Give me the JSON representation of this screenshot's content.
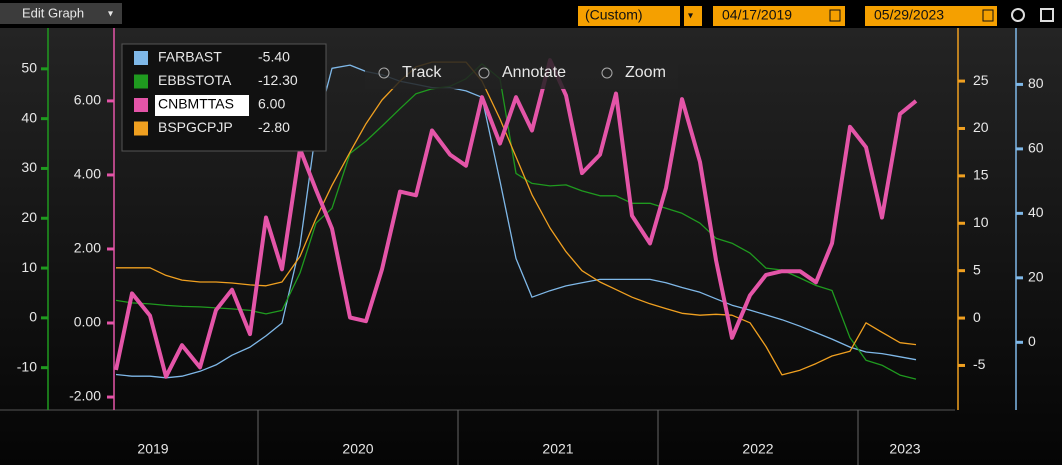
{
  "ui": {
    "edit_button": "Edit Graph",
    "period": "(Custom)",
    "start_date": "04/17/2019",
    "end_date": "05/29/2023",
    "tools": [
      "Track",
      "Annotate",
      "Zoom"
    ]
  },
  "chart_data": {
    "type": "line",
    "categories": [
      "2019",
      "2020",
      "2021",
      "2022",
      "2023"
    ],
    "xlim": [
      2018.95,
      2023.47
    ],
    "xticks": [
      2020,
      2021,
      2022,
      2023
    ],
    "x": [
      2019.29,
      2019.37,
      2019.46,
      2019.54,
      2019.62,
      2019.71,
      2019.79,
      2019.87,
      2019.96,
      2020.04,
      2020.12,
      2020.21,
      2020.29,
      2020.37,
      2020.46,
      2020.54,
      2020.62,
      2020.71,
      2020.79,
      2020.87,
      2020.96,
      2021.04,
      2021.12,
      2021.21,
      2021.29,
      2021.37,
      2021.46,
      2021.54,
      2021.62,
      2021.71,
      2021.79,
      2021.87,
      2021.96,
      2022.04,
      2022.12,
      2022.21,
      2022.29,
      2022.37,
      2022.46,
      2022.54,
      2022.62,
      2022.71,
      2022.79,
      2022.87,
      2022.96,
      2023.04,
      2023.12,
      2023.21,
      2023.29
    ],
    "ylim": [
      -18.5,
      58.2
    ],
    "yticks": [
      -10,
      0,
      10,
      20,
      30,
      40,
      50
    ],
    "y2lim": [
      -2.35,
      7.97
    ],
    "y2ticks": [
      {
        "value": -2,
        "label": "-2.00"
      },
      {
        "value": 0,
        "label": "0.00"
      },
      {
        "value": 2,
        "label": "2.00"
      },
      {
        "value": 4,
        "label": "4.00"
      },
      {
        "value": 6,
        "label": "6.00"
      }
    ],
    "y3lim": [
      -9.7,
      30.6
    ],
    "y3ticks": [
      -5,
      0,
      5,
      10,
      15,
      20,
      25
    ],
    "y4lim": [
      -21,
      97.5
    ],
    "y4ticks": [
      0,
      20,
      40,
      60,
      80
    ],
    "series": [
      {
        "name": "FARBAST",
        "legend_label": "-5.40",
        "color": "#7fb8e8",
        "axis": "y4",
        "values": [
          -10,
          -10.5,
          -10.5,
          -11,
          -10.5,
          -9,
          -7,
          -4,
          -1.5,
          2,
          6,
          30,
          66,
          85,
          86,
          84,
          83,
          81,
          80,
          79,
          79,
          78,
          76,
          50,
          26,
          14,
          16,
          17.5,
          18.5,
          19.5,
          19.5,
          19.5,
          19.5,
          18.5,
          17,
          15.5,
          13.5,
          11.5,
          10,
          8.5,
          7,
          5,
          3,
          1,
          -1.5,
          -3,
          -3.5,
          -4.5,
          -5.4
        ]
      },
      {
        "name": "EBBSTOTA",
        "legend_label": "-12.30",
        "color": "#1f9a1f",
        "axis": "y",
        "values": [
          3.5,
          3,
          2.8,
          2.5,
          2.3,
          2.2,
          2,
          1.8,
          1.5,
          0.8,
          1.5,
          9,
          19,
          22,
          33,
          35.5,
          38.5,
          42,
          45,
          46,
          46.5,
          48,
          51,
          48,
          29,
          27,
          26.5,
          26.7,
          25.5,
          24.5,
          24.5,
          23,
          23,
          22,
          21,
          19,
          16,
          15,
          13,
          10,
          9.6,
          8,
          6.5,
          5.5,
          -4,
          -8.5,
          -9.5,
          -11.5,
          -12.3
        ]
      },
      {
        "name": "CNBMTTAS",
        "legend_label": "6.00",
        "color": "#e455a8",
        "axis": "y2",
        "values": [
          -1.27,
          0.8,
          0.2,
          -1.45,
          -0.6,
          -1.2,
          0.35,
          0.9,
          -0.3,
          2.85,
          1.45,
          4.7,
          3.6,
          2.55,
          0.15,
          0.05,
          1.45,
          3.55,
          3.45,
          5.2,
          4.55,
          4.25,
          6.1,
          4.85,
          6.1,
          5.2,
          7.1,
          6.15,
          4.05,
          4.55,
          6.2,
          2.9,
          2.15,
          3.65,
          6.05,
          4.35,
          1.7,
          -0.4,
          0.75,
          1.3,
          1.4,
          1.4,
          1.1,
          2.15,
          5.3,
          4.75,
          2.85,
          5.65,
          6
        ]
      },
      {
        "name": "BSPGCPJP",
        "legend_label": "-2.80",
        "color": "#f0a020",
        "axis": "y3",
        "values": [
          5.3,
          5.3,
          5.3,
          4.5,
          4,
          3.8,
          3.8,
          3.7,
          3.5,
          3.4,
          3.8,
          6.5,
          10.5,
          14,
          17.5,
          20.5,
          23,
          25,
          26.5,
          27,
          27,
          27,
          25,
          21,
          17,
          13,
          9.5,
          7,
          5,
          3.8,
          3,
          2.2,
          1.5,
          1,
          0.5,
          0.3,
          0.4,
          0.3,
          -0.5,
          -3,
          -6,
          -5.5,
          -4.8,
          -4,
          -3.5,
          -0.5,
          -1.5,
          -2.6,
          -2.8
        ]
      }
    ]
  }
}
